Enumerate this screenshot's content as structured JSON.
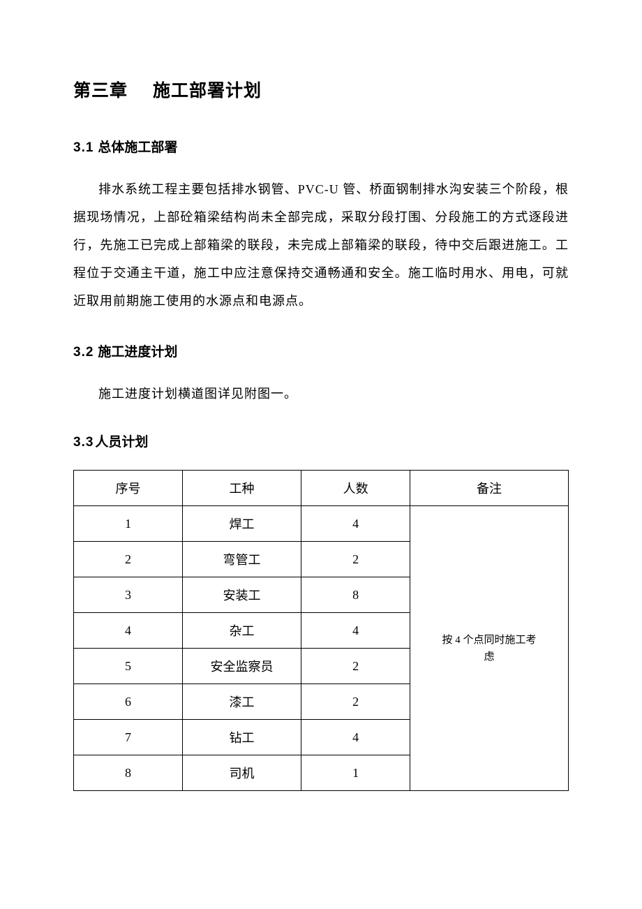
{
  "chapter": {
    "number": "第三章",
    "title": "施工部署计划"
  },
  "sections": {
    "s31": {
      "number": "3.1",
      "title": "总体施工部署",
      "paragraph": "排水系统工程主要包括排水钢管、PVC-U 管、桥面钢制排水沟安装三个阶段，根据现场情况，上部砼箱梁结构尚未全部完成，采取分段打围、分段施工的方式逐段进行，先施工已完成上部箱梁的联段，未完成上部箱梁的联段，待中交后跟进施工。工程位于交通主干道，施工中应注意保持交通畅通和安全。施工临时用水、用电，可就近取用前期施工使用的水源点和电源点。"
    },
    "s32": {
      "number": "3.2",
      "title": "施工进度计划",
      "paragraph": "施工进度计划横道图详见附图一。"
    },
    "s33": {
      "number": "3.3",
      "title": "人员计划"
    }
  },
  "table": {
    "headers": {
      "index": "序号",
      "type": "工种",
      "count": "人数",
      "remark": "备注"
    },
    "rows": [
      {
        "index": "1",
        "type": "焊工",
        "count": "4"
      },
      {
        "index": "2",
        "type": "弯管工",
        "count": "2"
      },
      {
        "index": "3",
        "type": "安装工",
        "count": "8"
      },
      {
        "index": "4",
        "type": "杂工",
        "count": "4"
      },
      {
        "index": "5",
        "type": "安全监察员",
        "count": "2"
      },
      {
        "index": "6",
        "type": "漆工",
        "count": "2"
      },
      {
        "index": "7",
        "type": "钻工",
        "count": "4"
      },
      {
        "index": "8",
        "type": "司机",
        "count": "1"
      }
    ],
    "remark_line1": "按 4 个点同时施工考",
    "remark_line2": "虑",
    "colors": {
      "border": "#000000",
      "text": "#000000",
      "background": "#ffffff"
    },
    "font_sizes": {
      "cell": 18,
      "remark": 15,
      "section_title": 19,
      "chapter_title": 25,
      "paragraph": 18
    },
    "column_widths_pct": [
      22,
      24,
      22,
      32
    ]
  }
}
